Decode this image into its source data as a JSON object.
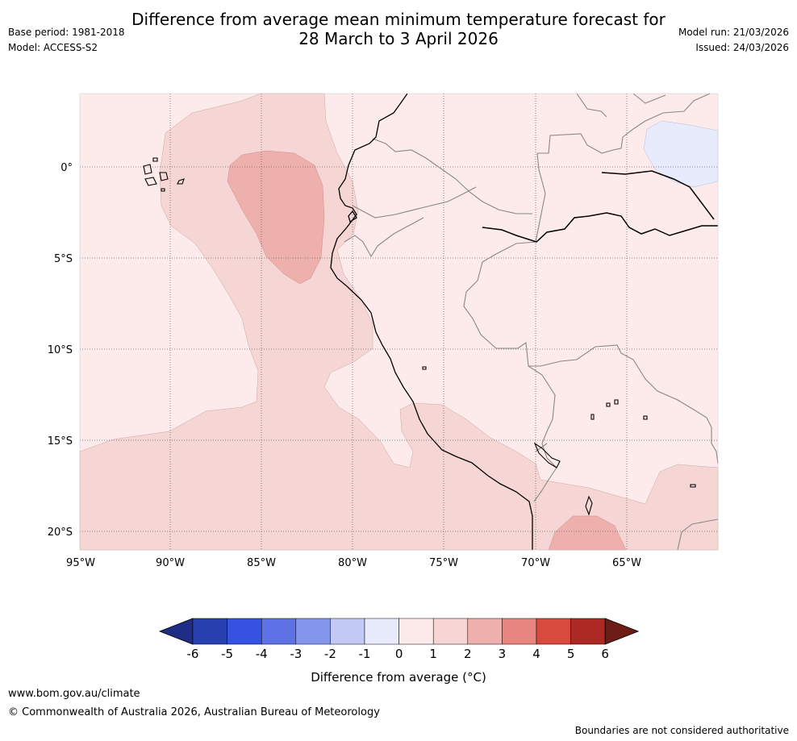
{
  "title": {
    "line1": "Difference from average mean minimum temperature forecast for",
    "line2": "28 March to 3 April 2026"
  },
  "meta": {
    "base_period": "Base period: 1981-2018",
    "model": "Model: ACCESS-S2",
    "model_run": "Model run: 21/03/2026",
    "issued": "Issued: 24/03/2026"
  },
  "map": {
    "lon_labels": [
      "95°W",
      "90°W",
      "85°W",
      "80°W",
      "75°W",
      "70°W",
      "65°W"
    ],
    "lat_labels": [
      "0°",
      "5°S",
      "10°S",
      "15°S",
      "20°S"
    ]
  },
  "colorbar": {
    "colors": [
      "#1f2d86",
      "#283fb0",
      "#3552e0",
      "#5e72e5",
      "#8496ec",
      "#c2c9f4",
      "#e8ebfb",
      "#fcebea",
      "#f6d6d5",
      "#eeb0ad",
      "#e8857f",
      "#d8493e",
      "#ac2a23",
      "#6e1d16"
    ],
    "tick_labels": [
      "-6",
      "-5",
      "-4",
      "-3",
      "-2",
      "-1",
      "0",
      "1",
      "2",
      "3",
      "4",
      "5",
      "6"
    ],
    "label": "Difference from average (°C)"
  },
  "footer": {
    "url": "www.bom.gov.au/climate",
    "copyright": "© Commonwealth of Australia 2026, Australian Bureau of Meteorology",
    "disclaimer": "Boundaries are not considered authoritative"
  }
}
